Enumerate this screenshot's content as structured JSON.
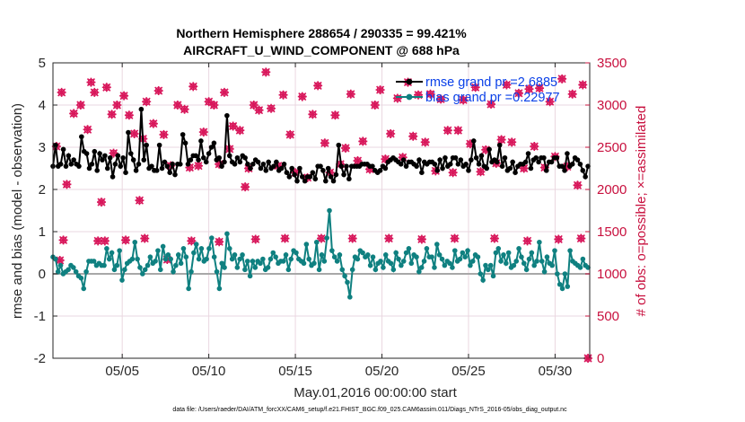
{
  "chart_data": {
    "type": "line",
    "title": "Northern Hemisphere 288654 / 290335 = 99.421%",
    "subtitle": "AIRCRAFT_U_WIND_COMPONENT @ 688 hPa",
    "xlabel": "May.01,2016 00:00:00 start",
    "ylabel_left": "rmse and bias (model - observation)",
    "ylabel_right": "# of obs: o=possible; ×=assimilated",
    "footer": "data file: /Users/raeder/DAI/ATM_forcXX/CAM6_setup/f.e21.FHIST_BGC.f09_025.CAM6assim.011/Diags_NTrS_2016-05/obs_diag_output.nc",
    "xlim": [
      1.0,
      32.0
    ],
    "ylim_left": [
      -2,
      5
    ],
    "ylim_right": [
      0,
      3500
    ],
    "x_ticks": [
      5,
      10,
      15,
      20,
      25,
      30
    ],
    "x_tick_labels": [
      "05/05",
      "05/10",
      "05/15",
      "05/20",
      "05/25",
      "05/30"
    ],
    "y_ticks_left": [
      "-2",
      "-1",
      "0",
      "1",
      "2",
      "3",
      "4",
      "5"
    ],
    "y_ticks_right": [
      "0",
      "500",
      "1000",
      "1500",
      "2000",
      "2500",
      "3000",
      "3500"
    ],
    "grid": true,
    "legend": [
      {
        "label": "rmse grand pr =2.6885",
        "color": "#000000"
      },
      {
        "label": "bias grand pr =0.22977",
        "color": "#0f8080"
      }
    ],
    "colors": {
      "rmse": "#000000",
      "bias": "#0f8080",
      "obs": "#d8175b",
      "zero_line": "#a8a8a8",
      "grid": "#ead7e0",
      "right_axis": "#c8103e"
    },
    "series": [
      {
        "name": "rmse",
        "axis": "left",
        "values": [
          2.55,
          3.05,
          2.55,
          2.6,
          2.95,
          2.55,
          2.8,
          2.6,
          2.7,
          2.6,
          2.55,
          3.25,
          2.9,
          2.85,
          2.5,
          2.6,
          2.9,
          2.45,
          2.85,
          2.7,
          2.8,
          2.5,
          2.75,
          2.3,
          2.6,
          2.8,
          2.55,
          2.75,
          2.4,
          3.35,
          2.85,
          2.7,
          2.45,
          2.6,
          3.9,
          2.7,
          3.05,
          2.5,
          2.55,
          2.45,
          2.45,
          3.05,
          2.5,
          2.65,
          2.55,
          2.4,
          2.6,
          2.35,
          2.6,
          2.6,
          3.3,
          3.1,
          2.6,
          2.7,
          2.8,
          2.8,
          2.7,
          3.15,
          2.75,
          2.65,
          2.85,
          3.0,
          3.1,
          2.7,
          2.75,
          2.55,
          2.65,
          3.75,
          2.8,
          2.65,
          2.6,
          2.75,
          2.65,
          2.8,
          2.75,
          2.6,
          2.5,
          2.6,
          2.7,
          2.65,
          2.5,
          2.6,
          2.45,
          2.65,
          2.5,
          2.55,
          2.65,
          2.45,
          2.5,
          2.6,
          2.4,
          2.3,
          2.5,
          2.35,
          2.2,
          2.5,
          2.3,
          2.2,
          2.3,
          2.3,
          2.4,
          2.25,
          2.55,
          2.55,
          2.45,
          2.2,
          2.5,
          2.3,
          2.2,
          2.35,
          3.05,
          2.55,
          2.35,
          2.55,
          2.25,
          2.55,
          2.55,
          2.55,
          2.55,
          2.6,
          2.6,
          2.6,
          2.55,
          2.55,
          2.45,
          2.4,
          2.45,
          2.55,
          2.5,
          2.65,
          2.7,
          2.75,
          2.7,
          2.65,
          2.6,
          2.7,
          2.55,
          2.65,
          2.65,
          2.6,
          2.55,
          2.7,
          2.4,
          2.65,
          2.6,
          2.65,
          2.65,
          2.6,
          2.45,
          2.7,
          2.5,
          2.75,
          2.55,
          2.6,
          2.75,
          2.75,
          2.6,
          2.7,
          2.55,
          2.6,
          2.45,
          2.7,
          3.15,
          2.75,
          2.6,
          2.8,
          2.55,
          2.5,
          2.95,
          2.65,
          2.7,
          2.65,
          3.05,
          2.55,
          2.75,
          2.45,
          2.5,
          2.65,
          2.4,
          2.55,
          2.6,
          2.6,
          2.65,
          2.85,
          2.5,
          2.7,
          2.75,
          2.65,
          2.75,
          2.75,
          2.45,
          2.65,
          2.65,
          2.75,
          2.75,
          2.55,
          2.55,
          2.45,
          2.85,
          2.55,
          2.6,
          2.75,
          2.7,
          2.6,
          2.45,
          2.3,
          2.55
        ]
      },
      {
        "name": "bias",
        "axis": "left",
        "values": [
          0.4,
          0.35,
          0.05,
          0.2,
          0.0,
          0.05,
          0.1,
          0.2,
          0.15,
          0.05,
          -0.05,
          -0.1,
          -0.35,
          0.05,
          0.3,
          0.3,
          0.3,
          0.2,
          0.25,
          0.2,
          0.2,
          0.6,
          0.35,
          0.5,
          0.1,
          0.2,
          0.55,
          -0.15,
          0.1,
          0.25,
          0.3,
          0.35,
          0.75,
          0.35,
          0.15,
          0.0,
          0.1,
          0.2,
          0.4,
          0.25,
          0.3,
          0.55,
          0.1,
          0.65,
          0.35,
          0.45,
          0.35,
          0.05,
          0.2,
          0.45,
          0.25,
          0.6,
          0.4,
          -0.35,
          0.05,
          0.5,
          0.7,
          0.35,
          0.6,
          0.3,
          0.35,
          0.6,
          0.85,
          0.4,
          0.05,
          -0.35,
          0.25,
          0.15,
          0.95,
          0.6,
          0.35,
          0.45,
          0.15,
          0.35,
          0.45,
          0.1,
          0.3,
          -0.05,
          0.3,
          0.15,
          0.3,
          0.25,
          0.35,
          0.1,
          0.15,
          0.35,
          0.5,
          0.4,
          0.25,
          0.3,
          0.3,
          0.45,
          0.1,
          0.35,
          0.55,
          0.5,
          0.35,
          0.3,
          0.25,
          0.7,
          0.35,
          0.2,
          0.25,
          0.75,
          0.1,
          0.45,
          0.3,
          0.85,
          1.5,
          0.55,
          0.4,
          0.3,
          0.45,
          0.1,
          -0.05,
          -0.2,
          -0.55,
          0.1,
          0.4,
          0.35,
          0.55,
          0.5,
          0.4,
          0.45,
          0.2,
          0.4,
          0.1,
          0.25,
          0.3,
          0.15,
          0.45,
          0.3,
          0.25,
          0.1,
          0.5,
          0.35,
          0.2,
          0.3,
          0.5,
          0.6,
          0.25,
          0.45,
          0.4,
          0.05,
          0.15,
          0.3,
          0.6,
          0.4,
          0.4,
          0.15,
          0.7,
          0.45,
          0.35,
          0.2,
          0.3,
          0.25,
          0.15,
          0.55,
          0.3,
          0.35,
          0.5,
          0.4,
          0.55,
          0.2,
          0.3,
          0.45,
          0.4,
          0.0,
          -0.15,
          0.2,
          0.1,
          0.2,
          -0.05,
          0.5,
          0.6,
          0.3,
          0.45,
          0.25,
          0.5,
          0.15,
          0.2,
          0.3,
          0.6,
          0.4,
          0.25,
          0.1,
          0.35,
          0.5,
          0.2,
          0.3,
          0.75,
          0.3,
          0.05,
          0.4,
          0.25,
          0.2,
          0.55,
          0.0,
          -0.25,
          -0.35,
          0.0,
          -0.3,
          0.55,
          0.3,
          0.25,
          0.2,
          0.15,
          0.35,
          0.2,
          0.15
        ]
      },
      {
        "name": "observations",
        "axis": "right",
        "x": [
          1.2,
          1.5,
          1.8,
          2.2,
          2.6,
          3.0,
          3.2,
          3.4,
          3.8,
          4.1,
          4.4,
          4.5,
          4.7,
          5.1,
          5.4,
          5.7,
          6.0,
          6.2,
          6.4,
          6.8,
          7.1,
          7.4,
          7.8,
          8.2,
          8.6,
          8.9,
          9.1,
          9.4,
          9.7,
          10.0,
          10.3,
          10.6,
          10.9,
          11.2,
          11.4,
          11.8,
          12.1,
          12.3,
          12.6,
          12.9,
          13.3,
          13.6,
          14.0,
          14.3,
          14.7,
          15.0,
          15.4,
          15.7,
          16.0,
          16.3,
          16.7,
          17.0,
          17.3,
          17.6,
          17.9,
          18.2,
          18.6,
          18.9,
          19.3,
          19.6,
          19.9,
          20.2,
          20.5,
          20.9,
          21.2,
          21.5,
          21.8,
          22.1,
          22.5,
          22.8,
          23.1,
          23.4,
          23.8,
          24.1,
          24.4,
          24.7,
          25.1,
          25.4,
          25.7,
          26.0,
          26.3,
          26.6,
          26.9,
          27.2,
          27.5,
          27.9,
          28.2,
          28.5,
          28.8,
          29.1,
          29.4,
          29.7,
          30.0,
          30.4,
          30.7,
          31.0,
          31.3,
          31.6,
          31.9,
          1.4,
          1.6,
          3.6,
          4.0,
          5.2,
          6.3,
          7.6,
          9.0,
          10.6,
          12.7,
          14.4,
          16.5,
          18.3,
          20.4,
          22.3,
          24.2,
          26.5,
          28.4,
          30.2,
          31.5
        ],
        "values": [
          2510,
          3150,
          2060,
          2900,
          3000,
          2710,
          3270,
          3150,
          1850,
          3210,
          2890,
          2430,
          3000,
          3110,
          2880,
          2660,
          1870,
          2600,
          3040,
          2780,
          3170,
          2650,
          2280,
          3000,
          2950,
          2260,
          3220,
          2280,
          2680,
          3040,
          3000,
          2300,
          3150,
          2480,
          2750,
          2700,
          2030,
          2250,
          3000,
          2940,
          3390,
          2960,
          2280,
          3120,
          2650,
          2200,
          3100,
          2140,
          2890,
          3230,
          2550,
          2200,
          2880,
          2300,
          2490,
          3130,
          2340,
          2570,
          2240,
          3000,
          3180,
          2360,
          2660,
          3080,
          2380,
          3270,
          2630,
          3120,
          2560,
          3130,
          2220,
          3070,
          2700,
          2200,
          2700,
          3060,
          2540,
          3210,
          2210,
          2470,
          3010,
          2310,
          2590,
          3240,
          2560,
          3140,
          2250,
          3190,
          2510,
          3200,
          2260,
          3040,
          2390,
          3310,
          2270,
          3130,
          2050,
          3240,
          0,
          1160,
          1400,
          1390,
          1390,
          1400,
          1420,
          1170,
          1390,
          1380,
          1410,
          1420,
          1420,
          1420,
          1420,
          1410,
          1420,
          1420,
          1390,
          1410,
          1420
        ]
      }
    ]
  }
}
